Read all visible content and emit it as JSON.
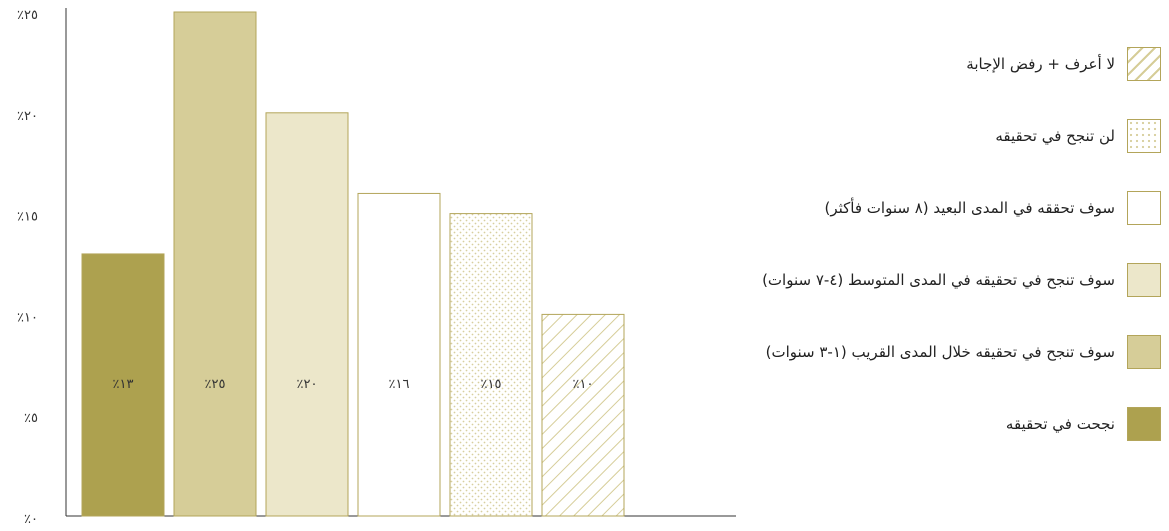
{
  "chart_data": {
    "type": "bar",
    "categories": [
      "نجحت في تحقيقه",
      "سوف تنجح في تحقيقه خلال المدى القريب (١-٣ سنوات)",
      "سوف تنجح في تحقيقه في المدى المتوسط (٤-٧ سنوات)",
      "سوف تحققه في المدى البعيد (٨ سنوات فأكثر)",
      "لن تنجح في تحقيقه",
      "لا أعرف + رفض الإجابة"
    ],
    "values": [
      13,
      25,
      20,
      16,
      15,
      10
    ],
    "value_labels": [
      "٪١٣",
      "٪٢٥",
      "٪٢٠",
      "٪١٦",
      "٪١٥",
      "٪١٠"
    ],
    "ylim": [
      0,
      25
    ],
    "yticks": [
      0,
      5,
      10,
      15,
      20,
      25
    ],
    "ytick_labels": [
      "٪٠",
      "٪٥",
      "٪١٠",
      "٪١٥",
      "٪٢٠",
      "٪٢٥"
    ],
    "legend_position": "right",
    "legend": [
      {
        "label": "لا أعرف + رفض الإجابة",
        "pattern": "hatch"
      },
      {
        "label": "لن تنجح في تحقيقه",
        "pattern": "dots"
      },
      {
        "label": "سوف تحققه في المدى البعيد (٨ سنوات فأكثر)",
        "pattern": "white"
      },
      {
        "label": "سوف تنجح في تحقيقه في المدى المتوسط (٤-٧ سنوات)",
        "pattern": "light"
      },
      {
        "label": "سوف تنجح في تحقيقه خلال المدى القريب (١-٣ سنوات)",
        "pattern": "medium"
      },
      {
        "label": "نجحت في تحقيقه",
        "pattern": "dark"
      }
    ],
    "bar_patterns": [
      "dark",
      "medium",
      "light",
      "white",
      "dots",
      "hatch"
    ],
    "colors": {
      "dark": "#ada14f",
      "medium": "#d6cd98",
      "light": "#ece7ca",
      "white": "#ffffff",
      "border": "#b3a55a",
      "dot": "#d8cf9f",
      "axis": "#333333"
    }
  }
}
